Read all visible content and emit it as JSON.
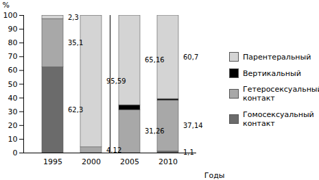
{
  "chart_data": {
    "type": "bar",
    "stacked": true,
    "data_labels": true,
    "grid": false,
    "legend": "right",
    "ylabel": "%",
    "xlabel": "Годы",
    "categories": [
      "1995",
      "2000",
      "2005",
      "2010"
    ],
    "ylim": [
      0,
      100
    ],
    "yticks": [
      0,
      10,
      20,
      30,
      40,
      50,
      60,
      70,
      80,
      90,
      100
    ],
    "series": [
      {
        "name": "Парентеральный",
        "color": "#d4d4d4",
        "values": [
          2.3,
          95.59,
          65.16,
          60.7
        ],
        "value_labels": [
          "2,3",
          "95,59",
          "65,16",
          "60,7"
        ]
      },
      {
        "name": "Вертикальный",
        "color": "#000000",
        "values": [
          null,
          null,
          3.5,
          1.0
        ],
        "value_labels": [
          null,
          null,
          null,
          null
        ]
      },
      {
        "name": "Гетеросексуальный контакт",
        "color": "#a8a8a8",
        "values": [
          35.1,
          4.12,
          31.26,
          37.14
        ],
        "value_labels": [
          "35,1",
          "4,12",
          "31,26",
          "37,14"
        ]
      },
      {
        "name": "Гомосексуальный контакт",
        "color": "#6b6b6b",
        "values": [
          62.3,
          null,
          null,
          1.1
        ],
        "value_labels": [
          "62,3",
          null,
          null,
          "1,1"
        ]
      }
    ]
  }
}
